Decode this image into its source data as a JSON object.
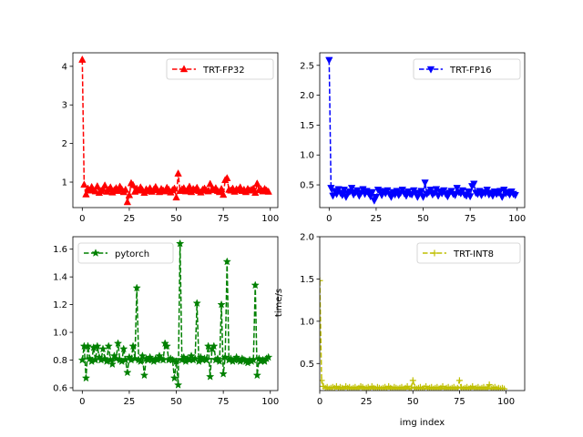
{
  "chart_data": [
    {
      "type": "line",
      "series": [
        {
          "name": "TRT-FP32",
          "color": "#ff0000",
          "marker": "triangle-up",
          "linestyle": "dashed"
        }
      ],
      "x_range": [
        0,
        99
      ],
      "y_values": [
        4.17,
        0.93,
        0.68,
        0.83,
        0.78,
        0.87,
        0.79,
        0.76,
        0.89,
        0.72,
        0.77,
        0.82,
        0.91,
        0.75,
        0.8,
        0.86,
        0.73,
        0.79,
        0.84,
        0.77,
        0.88,
        0.81,
        0.74,
        0.8,
        0.48,
        0.66,
        0.97,
        0.92,
        0.75,
        0.83,
        0.78,
        0.86,
        0.79,
        0.72,
        0.81,
        0.77,
        0.84,
        0.75,
        0.8,
        0.87,
        0.79,
        0.74,
        0.82,
        0.78,
        0.76,
        0.85,
        0.8,
        0.73,
        0.79,
        0.83,
        0.6,
        1.22,
        0.77,
        0.81,
        0.84,
        0.76,
        0.8,
        0.88,
        0.74,
        0.82,
        0.79,
        0.85,
        0.77,
        0.73,
        0.8,
        0.83,
        0.78,
        0.76,
        0.95,
        0.81,
        0.79,
        0.84,
        0.77,
        0.74,
        0.82,
        0.67,
        1.05,
        1.1,
        0.8,
        0.78,
        0.83,
        0.75,
        0.81,
        0.79,
        0.86,
        0.77,
        0.8,
        0.74,
        0.82,
        0.78,
        0.8,
        0.83,
        0.72,
        0.96,
        0.79,
        0.81,
        0.76,
        0.82,
        0.78,
        0.75
      ],
      "xticks": [
        "0",
        "25",
        "50",
        "75",
        "100"
      ],
      "yticks": [
        "1",
        "2",
        "3",
        "4"
      ],
      "xlim": [
        -5,
        104
      ],
      "ylim": [
        0.34,
        4.35
      ],
      "legend_position": "upper right"
    },
    {
      "type": "line",
      "series": [
        {
          "name": "TRT-FP16",
          "color": "#0000ff",
          "marker": "triangle-down",
          "linestyle": "dashed"
        }
      ],
      "x_range": [
        0,
        99
      ],
      "y_values": [
        2.59,
        0.45,
        0.32,
        0.4,
        0.35,
        0.43,
        0.37,
        0.33,
        0.42,
        0.3,
        0.36,
        0.39,
        0.45,
        0.34,
        0.38,
        0.41,
        0.32,
        0.37,
        0.43,
        0.35,
        0.4,
        0.36,
        0.31,
        0.38,
        0.24,
        0.3,
        0.42,
        0.4,
        0.33,
        0.39,
        0.36,
        0.41,
        0.35,
        0.3,
        0.38,
        0.34,
        0.4,
        0.33,
        0.37,
        0.42,
        0.36,
        0.32,
        0.39,
        0.35,
        0.34,
        0.41,
        0.37,
        0.3,
        0.36,
        0.4,
        0.3,
        0.54,
        0.35,
        0.38,
        0.42,
        0.34,
        0.37,
        0.43,
        0.32,
        0.39,
        0.36,
        0.41,
        0.35,
        0.31,
        0.37,
        0.4,
        0.35,
        0.33,
        0.45,
        0.38,
        0.36,
        0.41,
        0.34,
        0.32,
        0.39,
        0.31,
        0.48,
        0.52,
        0.37,
        0.35,
        0.4,
        0.33,
        0.38,
        0.36,
        0.42,
        0.34,
        0.37,
        0.32,
        0.39,
        0.35,
        0.37,
        0.4,
        0.3,
        0.42,
        0.36,
        0.38,
        0.34,
        0.39,
        0.35,
        0.33
      ],
      "xticks": [
        "0",
        "25",
        "50",
        "75",
        "100"
      ],
      "yticks": [
        "0.5",
        "1.0",
        "1.5",
        "2.0",
        "2.5"
      ],
      "xlim": [
        -5,
        104
      ],
      "ylim": [
        0.12,
        2.71
      ],
      "legend_position": "upper right"
    },
    {
      "type": "line",
      "series": [
        {
          "name": "pytorch",
          "color": "#008000",
          "marker": "star",
          "linestyle": "dashed"
        }
      ],
      "x_range": [
        0,
        99
      ],
      "y_values": [
        0.8,
        0.9,
        0.67,
        0.9,
        0.81,
        0.79,
        0.89,
        0.8,
        0.9,
        0.82,
        0.8,
        0.88,
        0.81,
        0.79,
        0.9,
        0.8,
        0.77,
        0.83,
        0.81,
        0.92,
        0.8,
        0.79,
        0.88,
        0.8,
        0.71,
        0.82,
        0.8,
        0.9,
        0.81,
        1.32,
        0.8,
        0.79,
        0.83,
        0.69,
        0.81,
        0.8,
        0.82,
        0.8,
        0.79,
        0.81,
        0.8,
        0.83,
        0.81,
        0.8,
        0.92,
        0.9,
        0.8,
        0.81,
        0.8,
        0.67,
        0.79,
        0.62,
        1.64,
        0.8,
        0.82,
        0.79,
        0.81,
        0.8,
        0.83,
        0.8,
        0.81,
        1.21,
        0.79,
        0.82,
        0.8,
        0.81,
        0.8,
        0.9,
        0.68,
        0.88,
        0.9,
        0.8,
        0.81,
        0.79,
        1.2,
        0.7,
        0.82,
        1.51,
        0.8,
        0.81,
        0.79,
        0.8,
        0.82,
        0.8,
        0.79,
        0.81,
        0.8,
        0.79,
        0.78,
        0.8,
        0.79,
        0.8,
        1.34,
        0.69,
        0.81,
        0.79,
        0.8,
        0.79,
        0.81,
        0.82
      ],
      "flat_line_value": 0.81,
      "xticks": [
        "0",
        "25",
        "50",
        "75",
        "100"
      ],
      "yticks": [
        "0.6",
        "0.8",
        "1.0",
        "1.2",
        "1.4",
        "1.6"
      ],
      "xlim": [
        -5,
        104
      ],
      "ylim": [
        0.58,
        1.69
      ],
      "legend_position": "upper left"
    },
    {
      "type": "line",
      "series": [
        {
          "name": "TRT-INT8",
          "color": "#bfbf00",
          "marker": "plus",
          "linestyle": "dashed"
        }
      ],
      "x_range": [
        0,
        99
      ],
      "y_values": [
        1.48,
        0.3,
        0.23,
        0.21,
        0.22,
        0.2,
        0.21,
        0.22,
        0.21,
        0.23,
        0.2,
        0.22,
        0.21,
        0.2,
        0.23,
        0.21,
        0.22,
        0.2,
        0.21,
        0.22,
        0.2,
        0.21,
        0.23,
        0.22,
        0.2,
        0.21,
        0.22,
        0.2,
        0.23,
        0.21,
        0.2,
        0.22,
        0.21,
        0.2,
        0.21,
        0.22,
        0.2,
        0.23,
        0.21,
        0.2,
        0.22,
        0.21,
        0.2,
        0.21,
        0.22,
        0.2,
        0.21,
        0.23,
        0.2,
        0.21,
        0.3,
        0.22,
        0.2,
        0.21,
        0.22,
        0.2,
        0.21,
        0.23,
        0.2,
        0.21,
        0.22,
        0.2,
        0.21,
        0.22,
        0.2,
        0.21,
        0.23,
        0.2,
        0.21,
        0.22,
        0.2,
        0.21,
        0.22,
        0.2,
        0.21,
        0.3,
        0.22,
        0.2,
        0.21,
        0.22,
        0.2,
        0.21,
        0.23,
        0.2,
        0.21,
        0.22,
        0.2,
        0.21,
        0.22,
        0.2,
        0.21,
        0.25,
        0.2,
        0.21,
        0.22,
        0.2,
        0.21,
        0.2,
        0.21,
        0.2
      ],
      "xticks": [
        "0",
        "25",
        "50",
        "75",
        "100"
      ],
      "yticks": [
        "0.5",
        "1.0",
        "1.5",
        "2.0"
      ],
      "xlim": [
        0,
        110
      ],
      "ylim": [
        0.18,
        2.0
      ],
      "xlabel": "img index",
      "ylabel": "time/s",
      "legend_position": "upper right"
    }
  ]
}
